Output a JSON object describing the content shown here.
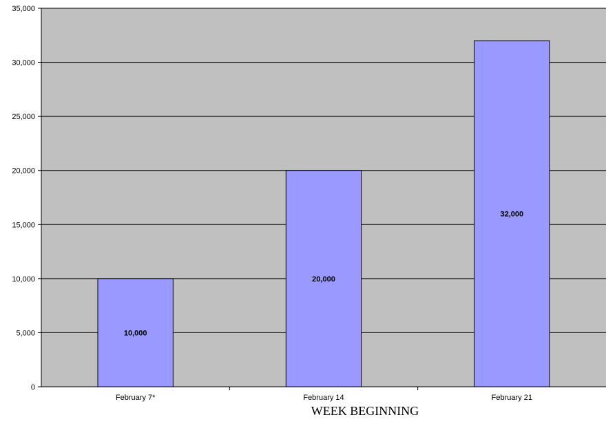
{
  "chart_data": {
    "type": "bar",
    "title": "",
    "xlabel": "WEEK BEGINNING",
    "ylabel": "",
    "categories": [
      "February 7*",
      "February 14",
      "February 21"
    ],
    "values": [
      10000,
      20000,
      32000
    ],
    "value_labels": [
      "10,000",
      "20,000",
      "32,000"
    ],
    "ylim": [
      0,
      35000
    ],
    "yticks": [
      0,
      5000,
      10000,
      15000,
      20000,
      25000,
      30000,
      35000
    ],
    "ytick_labels": [
      "0",
      "5,000",
      "10,000",
      "15,000",
      "20,000",
      "25,000",
      "30,000",
      "35,000"
    ],
    "grid": true,
    "legend": "none",
    "colors": {
      "plot_background": "#c0c0c0",
      "bar_fill": "#9999ff",
      "bar_stroke": "#000000",
      "gridline": "#000000"
    }
  }
}
